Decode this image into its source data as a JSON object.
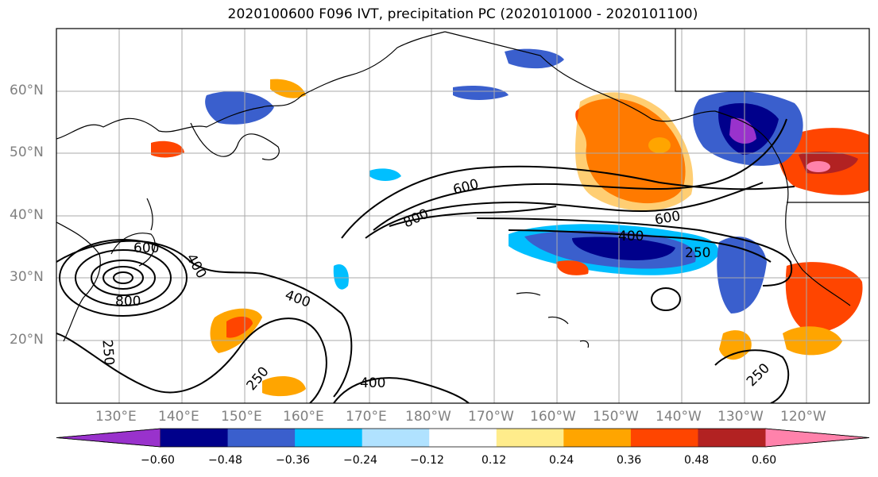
{
  "title": "2020100600 F096 IVT, precipitation PC (2020101000 - 2020101100)",
  "map": {
    "lat_labels": [
      "60°N",
      "50°N",
      "40°N",
      "30°N",
      "20°N"
    ],
    "lon_labels": [
      "130°E",
      "140°E",
      "150°E",
      "160°E",
      "170°E",
      "180°W",
      "170°W",
      "160°W",
      "150°W",
      "140°W",
      "130°W",
      "120°W"
    ],
    "contour_labels": [
      "600",
      "800",
      "600",
      "400",
      "250",
      "400",
      "600",
      "800",
      "400",
      "250",
      "250",
      "400",
      "250"
    ]
  },
  "colorbar": {
    "colors": [
      "#9932cc",
      "#00008b",
      "#3a5fcd",
      "#00bfff",
      "#b0e2ff",
      "#ffffff",
      "#ffec8b",
      "#ffa500",
      "#ff4500",
      "#b22222",
      "#ff82ab"
    ],
    "tick_labels": [
      "−0.60",
      "−0.48",
      "−0.36",
      "−0.24",
      "−0.12",
      "0.12",
      "0.24",
      "0.36",
      "0.48",
      "0.60"
    ]
  },
  "chart_data": {
    "type": "heatmap",
    "title": "2020100600 F096 IVT, precipitation PC (2020101000 - 2020101100)",
    "x_ticks": [
      "130°E",
      "140°E",
      "150°E",
      "160°E",
      "170°E",
      "180°W",
      "170°W",
      "160°W",
      "150°W",
      "140°W",
      "130°W",
      "120°W"
    ],
    "y_ticks": [
      "60°N",
      "50°N",
      "40°N",
      "30°N",
      "20°N"
    ],
    "color_levels": [
      -0.6,
      -0.48,
      -0.36,
      -0.24,
      -0.12,
      0.12,
      0.24,
      0.36,
      0.48,
      0.6
    ],
    "ivt_contour_values": [
      250,
      400,
      600,
      800
    ]
  }
}
